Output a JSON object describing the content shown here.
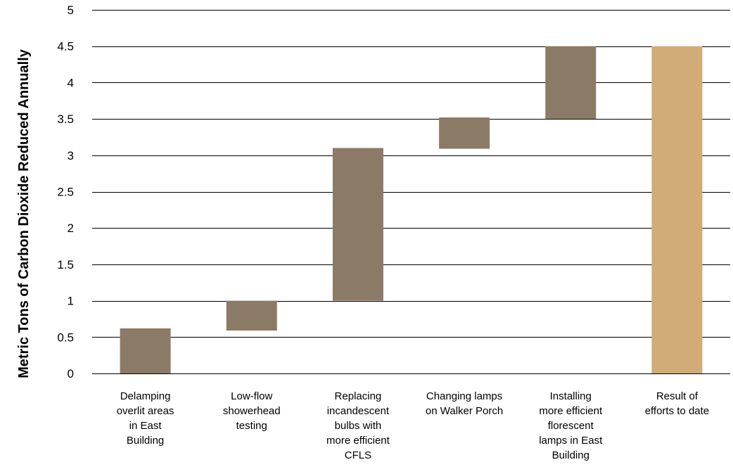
{
  "chart_data": {
    "type": "bar",
    "subtype": "waterfall",
    "title": "",
    "xlabel": "",
    "ylabel": "Metric Tons of Carbon Dioxide Reduced Annually",
    "ylim": [
      0,
      5
    ],
    "yticks": [
      "0",
      "0.5",
      "1",
      "1.5",
      "2",
      "2.5",
      "3",
      "3.5",
      "4",
      "4.5",
      "5"
    ],
    "grid": true,
    "legend": "none",
    "categories": [
      "Delamping overlit areas in East Building",
      "Low-flow showerhead testing",
      "Replacing incandescent bulbs with more efficient CFLS",
      "Changing lamps on Walker Porch",
      "Installing more efficient florescent lamps in East Building",
      "Result of efforts to date"
    ],
    "category_lines": [
      [
        "Delamping",
        "overlit areas",
        "in East",
        "Building"
      ],
      [
        "Low-flow",
        "showerhead",
        "testing"
      ],
      [
        "Replacing",
        "incandescent",
        "bulbs with",
        "more efficient",
        "CFLS"
      ],
      [
        "Changing lamps",
        "on Walker Porch"
      ],
      [
        "Installing",
        "more efficient",
        "florescent",
        "lamps in East",
        "Building"
      ],
      [
        "Result of",
        "efforts to date"
      ]
    ],
    "bars": [
      {
        "start": 0,
        "end": 0.62,
        "kind": "increment"
      },
      {
        "start": 0.59,
        "end": 1.0,
        "kind": "increment"
      },
      {
        "start": 1.0,
        "end": 3.1,
        "kind": "increment"
      },
      {
        "start": 3.09,
        "end": 3.52,
        "kind": "increment"
      },
      {
        "start": 3.5,
        "end": 4.5,
        "kind": "increment"
      },
      {
        "start": 0,
        "end": 4.5,
        "kind": "total"
      }
    ],
    "colors": {
      "increment": "#8b7a66",
      "total": "#d1ab78",
      "grid": "#000000",
      "text": "#000000"
    }
  }
}
